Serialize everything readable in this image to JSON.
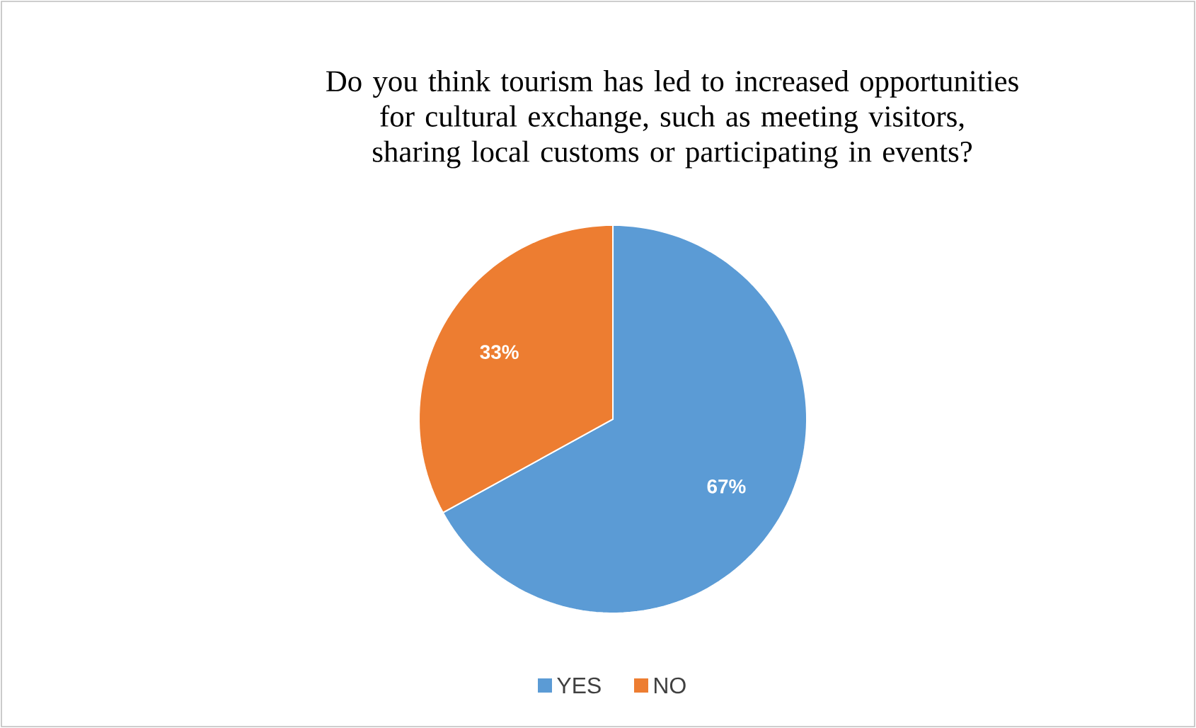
{
  "chart_data": {
    "type": "pie",
    "title": "Do you think tourism has led to increased opportunities for cultural exchange, such as meeting visitors, sharing local customs or participating in events?",
    "categories": [
      "YES",
      "NO"
    ],
    "values": [
      67,
      33
    ],
    "value_labels": [
      "67%",
      "33%"
    ],
    "colors": [
      "#5b9bd5",
      "#ed7d31"
    ],
    "legend": "bottom"
  }
}
